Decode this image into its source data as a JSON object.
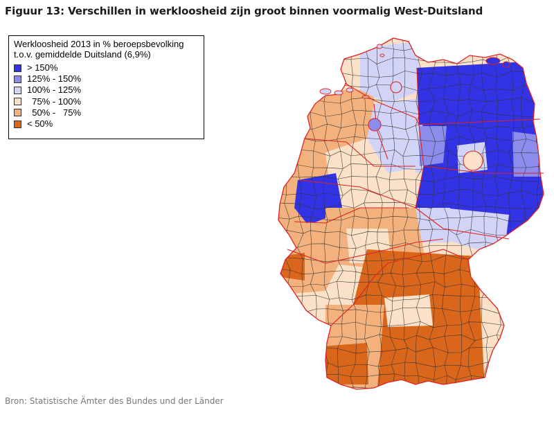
{
  "title": "Figuur 13: Verschillen in werkloosheid zijn groot binnen voormalig West-Duitsland",
  "legend": {
    "title_line1": "Werkloosheid 2013 in % beroepsbevolking",
    "title_line2": "t.o.v. gemiddelde Duitsland (6,9%)",
    "items": [
      {
        "label": "> 150%",
        "color": "#3333e6"
      },
      {
        "label": "125% - 150%",
        "color": "#8c8cec"
      },
      {
        "label": "100% - 125%",
        "color": "#d2d4f7"
      },
      {
        "label": "  75% - 100%",
        "color": "#fbe1c8"
      },
      {
        "label": "  50% -   75%",
        "color": "#f3b27d"
      },
      {
        "label": "< 50%",
        "color": "#d9661a"
      }
    ]
  },
  "colors": {
    "district_border": "#333333",
    "state_border": "#e02020"
  },
  "source": "Bron: Statistische Ämter des Bundes und der Länder"
}
